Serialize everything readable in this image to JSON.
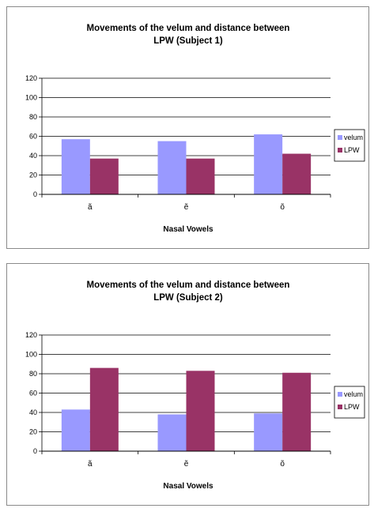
{
  "colors": {
    "velum": "#9999ff",
    "lpw": "#993366",
    "grid": "#000000",
    "border": "#8a8a8a"
  },
  "chart_data": [
    {
      "type": "bar",
      "title_line1": "Movements of the velum and distance between",
      "title_line2": "LPW (Subject 1)",
      "xlabel": "Nasal Vowels",
      "ylabel": "",
      "categories": [
        "ã",
        "ẽ",
        "õ"
      ],
      "series": [
        {
          "name": "velum",
          "values": [
            57,
            55,
            62
          ]
        },
        {
          "name": "LPW",
          "values": [
            37,
            37,
            42
          ]
        }
      ],
      "ylim": [
        0,
        120
      ],
      "yticks": [
        0,
        20,
        40,
        60,
        80,
        100,
        120
      ],
      "grid": true,
      "legend": "right"
    },
    {
      "type": "bar",
      "title_line1": "Movements of the velum and distance between",
      "title_line2": "LPW (Subject 2)",
      "xlabel": "Nasal Vowels",
      "ylabel": "",
      "categories": [
        "ã",
        "ẽ",
        "õ"
      ],
      "series": [
        {
          "name": "velum",
          "values": [
            43,
            38,
            39
          ]
        },
        {
          "name": "LPW",
          "values": [
            86,
            83,
            81
          ]
        }
      ],
      "ylim": [
        0,
        120
      ],
      "yticks": [
        0,
        20,
        40,
        60,
        80,
        100,
        120
      ],
      "grid": true,
      "legend": "right"
    }
  ]
}
